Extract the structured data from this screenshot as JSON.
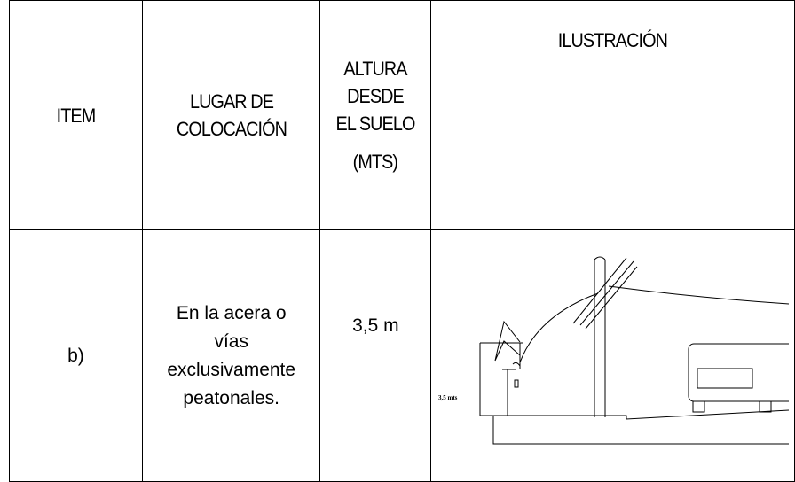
{
  "table": {
    "header": [
      "ITEM",
      "LUGAR DE COLOCACIÓN",
      "ALTURA DESDE EL SUELO",
      "(MTS)",
      "ILUSTRACIÓN"
    ],
    "rows": [
      [
        "b)",
        "En la acera o vías exclusivamente peatonales.",
        "3,5 m"
      ]
    ],
    "illustration_label": "3,5 mts"
  }
}
